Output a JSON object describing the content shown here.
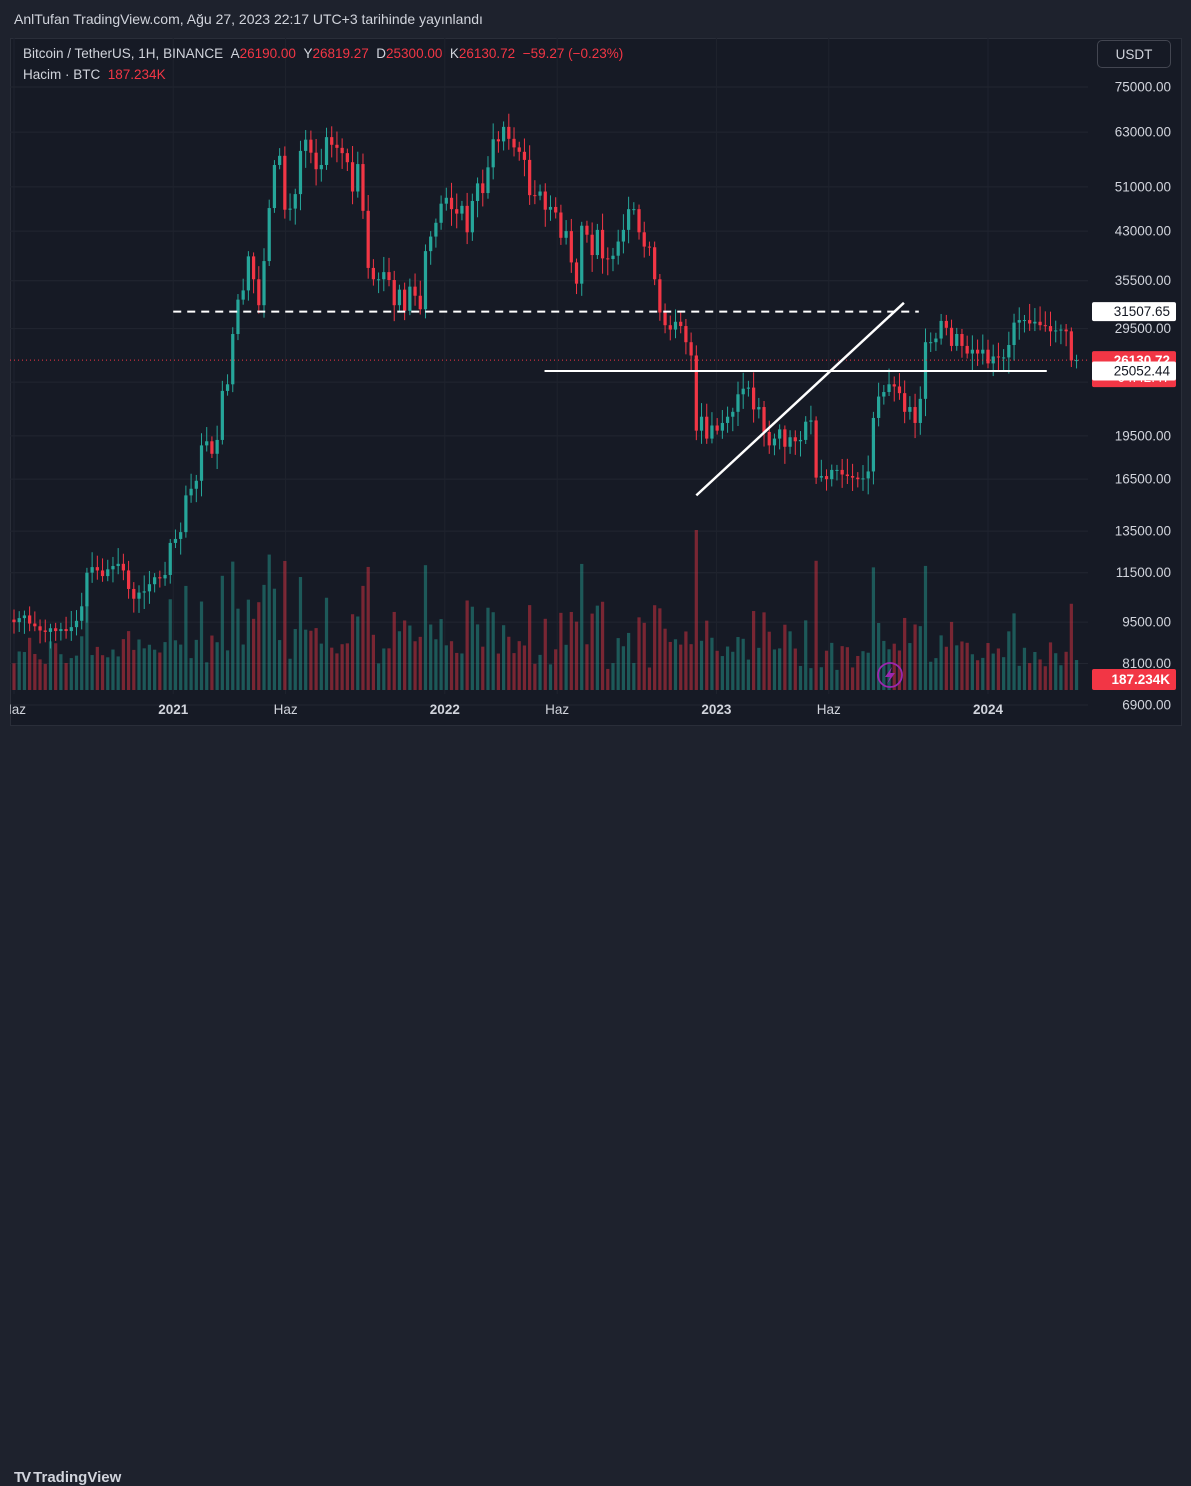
{
  "header": {
    "published": "AnlTufan TradingView.com, Ağu 27, 2023 22:17 UTC+3 tarihinde yayınlandı"
  },
  "legend": {
    "symbol": "Bitcoin / TetherUS, 1H, BINANCE",
    "open_label": "A",
    "open": "26190.00",
    "high_label": "Y",
    "high": "26819.27",
    "low_label": "D",
    "low": "25300.00",
    "close_label": "K",
    "close": "26130.72",
    "change": "−59.27 (−0.23%)",
    "volume_label": "Hacim · BTC",
    "volume_value": "187.234K"
  },
  "currency_button": "USDT",
  "footer": {
    "brand": "TradingView"
  },
  "colors": {
    "up": "#26a69a",
    "down": "#f23645",
    "background": "#161a25",
    "lines": "#ffffff"
  },
  "chart_data": {
    "type": "candlestick",
    "scale": "log",
    "y_ticks": [
      6900,
      8100,
      9500,
      11500,
      13500,
      16500,
      19500,
      24000,
      29500,
      35500,
      43000,
      51000,
      63000,
      75000
    ],
    "y_tick_labels": [
      "6900.00",
      "8100.00",
      "9500.00",
      "11500.00",
      "13500.00",
      "16500.00",
      "19500.00",
      "24000.00",
      "29500.00",
      "35500.00",
      "43000.00",
      "51000.00",
      "63000.00",
      "75000.00"
    ],
    "x_ticks": [
      "2020-06-01",
      "2021-01-01",
      "2021-06-01",
      "2022-01-01",
      "2022-06-01",
      "2023-01-01",
      "2023-06-01",
      "2024-01-01"
    ],
    "x_tick_labels": [
      "Haz",
      "2021",
      "Haz",
      "2022",
      "Haz",
      "2023",
      "Haz",
      "2024"
    ],
    "x_range": [
      "2020-06-01",
      "2024-03-20"
    ],
    "price_labels": [
      {
        "value": 31507.65,
        "text": "31507.65",
        "kind": "line-dashed"
      },
      {
        "value": 26130.72,
        "text": "26130.72",
        "kind": "last-price",
        "countdown": "04:42:47"
      },
      {
        "value": 25052.44,
        "text": "25052.44",
        "kind": "line-solid"
      }
    ],
    "volume_label": "187.234K",
    "lines": [
      {
        "style": "dashed",
        "price": 31507.65,
        "from": "2021-01-01",
        "to": "2023-09-30"
      },
      {
        "style": "solid",
        "price": 25052.44,
        "from": "2022-05-15",
        "to": "2024-03-20"
      },
      {
        "style": "solid",
        "from": "2022-12-05",
        "from_price": 15500,
        "to": "2023-09-10",
        "to_price": 32600
      }
    ],
    "weekly_closes": [
      9500,
      9650,
      9750,
      9450,
      9350,
      9200,
      9150,
      9280,
      9180,
      9250,
      9180,
      9320,
      9550,
      10100,
      11500,
      11750,
      11600,
      11350,
      11650,
      11800,
      11900,
      11600,
      10800,
      10400,
      10650,
      10700,
      11000,
      11300,
      11250,
      11400,
      12900,
      13100,
      13450,
      15500,
      15900,
      16400,
      18800,
      19100,
      18200,
      19200,
      23200,
      23800,
      28900,
      33000,
      34200,
      39000,
      35700,
      32300,
      38300,
      47000,
      55500,
      57500,
      46700,
      46900,
      49600,
      58600,
      61200,
      58200,
      54600,
      55500,
      61800,
      60000,
      59300,
      58100,
      56100,
      50100,
      55700,
      46500,
      37300,
      35700,
      35700,
      36700,
      35600,
      32300,
      34300,
      31600,
      34700,
      33500,
      31800,
      39800,
      42100,
      44400,
      47800,
      48900,
      46800,
      46000,
      47400,
      42800,
      48300,
      51700,
      49800,
      55000,
      61300,
      60800,
      64300,
      61400,
      59400,
      58400,
      56600,
      49400,
      49300,
      50100,
      46700,
      47200,
      46200,
      41900,
      43000,
      38100,
      35100,
      43900,
      42400,
      39200,
      43200,
      38700,
      38600,
      39100,
      41300,
      43200,
      46800,
      46800,
      42800,
      40500,
      40400,
      35700,
      31400,
      29900,
      29400,
      30300,
      29800,
      28000,
      26600,
      19900,
      21000,
      19300,
      20300,
      19900,
      20500,
      21000,
      21400,
      22900,
      23400,
      23500,
      21600,
      21800,
      19800,
      18800,
      19300,
      20000,
      18700,
      19400,
      19100,
      19200,
      20600,
      20700,
      16600,
      16700,
      16500,
      17100,
      17100,
      16800,
      16700,
      16600,
      16500,
      16550,
      17000,
      20900,
      22700,
      23100,
      23800,
      23600,
      23000,
      21400,
      21800,
      20500,
      22500,
      28000,
      28000,
      28400,
      30400,
      29600,
      27600,
      28900,
      27600,
      26800,
      27200,
      26800,
      27200,
      25800,
      26500,
      26400,
      26400,
      27700,
      30200,
      30500,
      30500,
      30100,
      30300,
      29900,
      29800,
      29200,
      29300,
      29400,
      29200,
      26100,
      26130
    ]
  }
}
